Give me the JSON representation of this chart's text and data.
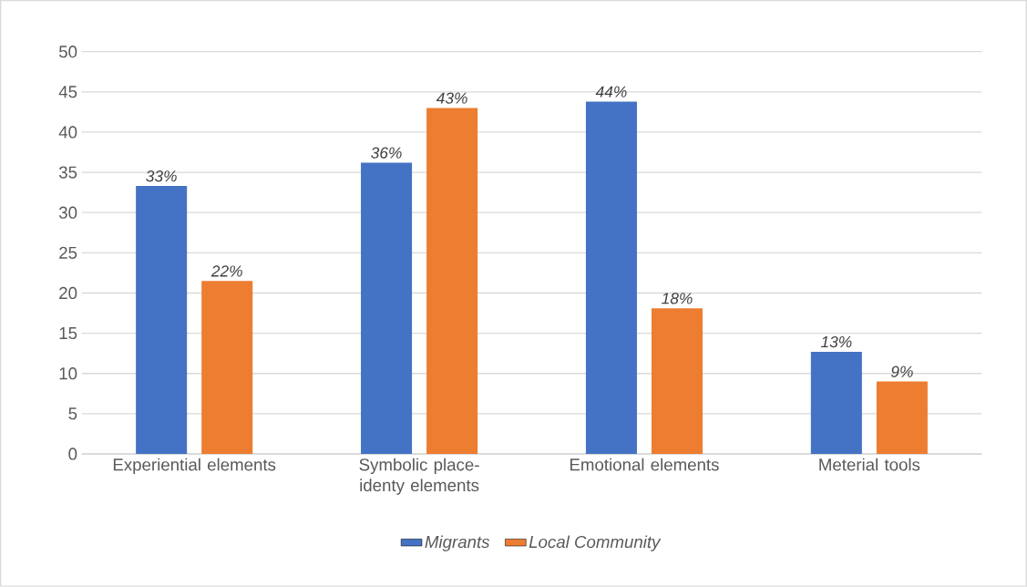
{
  "chart_data": {
    "type": "bar",
    "categories": [
      "Experiential elements",
      "Symbolic place-identy elements",
      "Emotional elements",
      "Meterial tools"
    ],
    "series": [
      {
        "name": "Migrants",
        "color": "#4472c4",
        "values": [
          33.3,
          36.2,
          43.8,
          12.7
        ],
        "value_labels": [
          "33%",
          "36%",
          "44%",
          "13%"
        ]
      },
      {
        "name": "Local Community",
        "color": "#ed7d31",
        "values": [
          21.5,
          43.0,
          18.1,
          9.0
        ],
        "value_labels": [
          "22%",
          "43%",
          "18%",
          "9%"
        ]
      }
    ],
    "ylim": [
      0,
      50
    ],
    "yticks": [
      0,
      5,
      10,
      15,
      20,
      25,
      30,
      35,
      40,
      45,
      50
    ],
    "grid": "y",
    "legend": "bottom"
  }
}
